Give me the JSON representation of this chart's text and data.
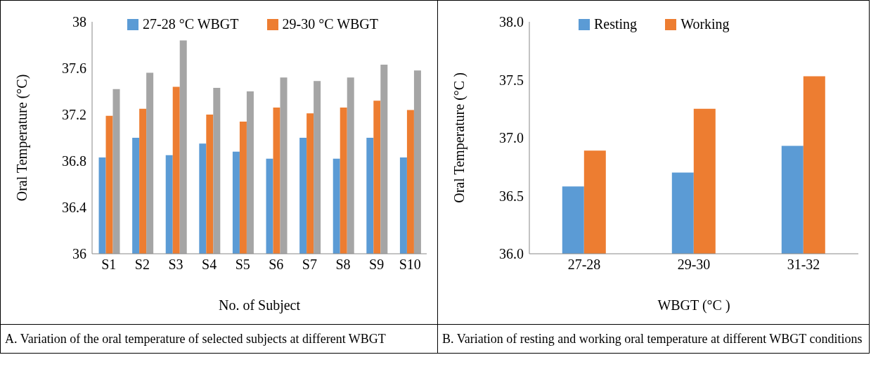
{
  "chart_data": [
    {
      "type": "bar",
      "categories": [
        "S1",
        "S2",
        "S3",
        "S4",
        "S5",
        "S6",
        "S7",
        "S8",
        "S9",
        "S10"
      ],
      "xlabel": "No. of Subject",
      "ylabel": "Oral Temperature (°C)",
      "ylim": [
        36,
        38
      ],
      "yticks": [
        36,
        36.4,
        36.8,
        37.2,
        37.6,
        38
      ],
      "legend": "top",
      "annotations": [
        "A. Variation of the oral temperature of selected subjects at different WBGT"
      ],
      "series": [
        {
          "name": "27-28  °C WBGT",
          "color": "#5b9bd5",
          "values": [
            36.83,
            37.0,
            36.85,
            36.95,
            36.88,
            36.82,
            37.0,
            36.82,
            37.0,
            36.83
          ]
        },
        {
          "name": "29-30 °C WBGT",
          "color": "#ed7d31",
          "values": [
            37.19,
            37.25,
            37.44,
            37.2,
            37.14,
            37.26,
            37.21,
            37.26,
            37.32,
            37.24
          ]
        },
        {
          "color": "#a5a5a5",
          "values": [
            37.42,
            37.56,
            37.84,
            37.43,
            37.4,
            37.52,
            37.49,
            37.52,
            37.63,
            37.58
          ]
        }
      ]
    },
    {
      "type": "bar",
      "categories": [
        "27-28",
        "29-30",
        "31-32"
      ],
      "xlabel": "WBGT (°C )",
      "ylabel": "Oral Temperature (°C )",
      "ylim": [
        36,
        38
      ],
      "yticks": [
        {
          "value": 36,
          "label": "36.0"
        },
        {
          "value": 36.5,
          "label": "36.5"
        },
        {
          "value": 37,
          "label": "37.0"
        },
        {
          "value": 37.5,
          "label": "37.5"
        },
        {
          "value": 38,
          "label": "38.0"
        }
      ],
      "legend": "top",
      "annotations": [
        "B. Variation of resting and working oral temperature at different WBGT conditions"
      ],
      "series": [
        {
          "name": "Resting",
          "color": "#5b9bd5",
          "values": [
            36.58,
            36.7,
            36.93
          ]
        },
        {
          "name": "Working",
          "color": "#ed7d31",
          "values": [
            36.89,
            37.25,
            37.53
          ]
        }
      ]
    }
  ]
}
